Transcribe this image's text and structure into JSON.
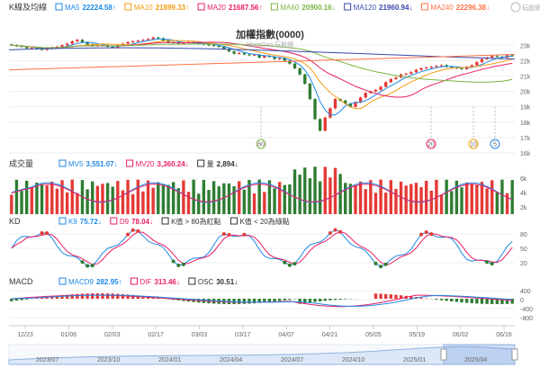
{
  "watermark": "玩股網",
  "chart_data": {
    "type": "line",
    "title": "加權指數(0000)",
    "subtitle": "WantGoo 玩股網",
    "x": [
      "12/23",
      "01/06",
      "02/03",
      "02/17",
      "03/03",
      "03/17",
      "04/07",
      "04/21",
      "05/05",
      "05/19",
      "06/02",
      "06/16"
    ],
    "nav_ticks": [
      "2023/07",
      "2023/10",
      "2024/01",
      "2024/04",
      "2024/07",
      "2024/10",
      "2025/01",
      "2025/04"
    ],
    "price_panel": {
      "label": "K線及均線",
      "y_ticks": [
        "23k",
        "22k",
        "21k",
        "20k",
        "19k",
        "18k",
        "17k",
        "16k"
      ],
      "ylim": [
        16000,
        23600
      ],
      "legend": [
        {
          "name": "MA5",
          "value": "22224.58",
          "arrow": "↑",
          "color": "#1e88e5"
        },
        {
          "name": "MA10",
          "value": "21899.33",
          "arrow": "↑",
          "color": "#f39c12"
        },
        {
          "name": "MA20",
          "value": "21687.56",
          "arrow": "↑",
          "color": "#e91e63"
        },
        {
          "name": "MA60",
          "value": "20900.16",
          "arrow": "↓",
          "color": "#7cb342"
        },
        {
          "name": "MA120",
          "value": "21960.94",
          "arrow": "↓",
          "color": "#3949ab"
        },
        {
          "name": "MA240",
          "value": "22296.38",
          "arrow": "↓",
          "color": "#ff7043"
        }
      ],
      "markers": [
        "60",
        "20",
        "10",
        "5"
      ],
      "candles_close": [
        23000,
        22950,
        22900,
        22800,
        22820,
        22760,
        22700,
        22780,
        22850,
        22900,
        23000,
        23100,
        23250,
        23350,
        23200,
        23050,
        22950,
        22980,
        23000,
        22900,
        22850,
        23000,
        23100,
        23200,
        23250,
        23300,
        23350,
        23400,
        23500,
        23450,
        23300,
        23200,
        23150,
        23100,
        23150,
        23200,
        23150,
        23100,
        23050,
        23000,
        22950,
        22900,
        22750,
        22600,
        22450,
        22500,
        22400,
        22350,
        22380,
        22200,
        22300,
        22250,
        22100,
        22150,
        22000,
        21800,
        21500,
        21100,
        20500,
        19500,
        18200,
        17450,
        18300,
        18900,
        19500,
        19400,
        19200,
        19000,
        19300,
        19600,
        19900,
        20000,
        20100,
        20300,
        20600,
        20800,
        20900,
        21100,
        21150,
        21250,
        21400,
        21500,
        21550,
        21600,
        21650,
        21700,
        21600,
        21550,
        21500,
        21450,
        21600,
        21700,
        21900,
        22100,
        22200,
        22300,
        22250,
        22200,
        22350,
        22300
      ]
    },
    "volume_panel": {
      "label": "成交量",
      "y_ticks": [
        "6k",
        "4k",
        "2k"
      ],
      "legend": [
        {
          "name": "MV5",
          "value": "3,551.07",
          "arrow": "↓",
          "color": "#1e88e5"
        },
        {
          "name": "MV20",
          "value": "3,360.24",
          "arrow": "↓",
          "color": "#e91e63"
        },
        {
          "name": "量",
          "value": "2,894",
          "arrow": "↓",
          "color": "#333"
        }
      ]
    },
    "kd_panel": {
      "label": "KD",
      "y_ticks": [
        "80",
        "50",
        "20"
      ],
      "legend": [
        {
          "name": "K9",
          "value": "75.72",
          "arrow": "↓",
          "color": "#1e88e5"
        },
        {
          "name": "D9",
          "value": "78.04",
          "arrow": "↓",
          "color": "#e91e63"
        },
        {
          "name": "K值 > 80為紅點",
          "value": "",
          "arrow": "",
          "color": "#333"
        },
        {
          "name": "K值 < 20為綠點",
          "value": "",
          "arrow": "",
          "color": "#333"
        }
      ]
    },
    "macd_panel": {
      "label": "MACD",
      "y_ticks": [
        "400",
        "0",
        "-400",
        "-800"
      ],
      "legend": [
        {
          "name": "MACD9",
          "value": "282.95",
          "arrow": "↑",
          "color": "#1e88e5"
        },
        {
          "name": "DIF",
          "value": "313.46",
          "arrow": "↓",
          "color": "#e91e63"
        },
        {
          "name": "OSC",
          "value": "30.51",
          "arrow": "↓",
          "color": "#333"
        }
      ]
    },
    "colors": {
      "up": "#e53935",
      "down": "#2e7d32",
      "k": "#1e88e5",
      "d": "#e91e63"
    }
  }
}
